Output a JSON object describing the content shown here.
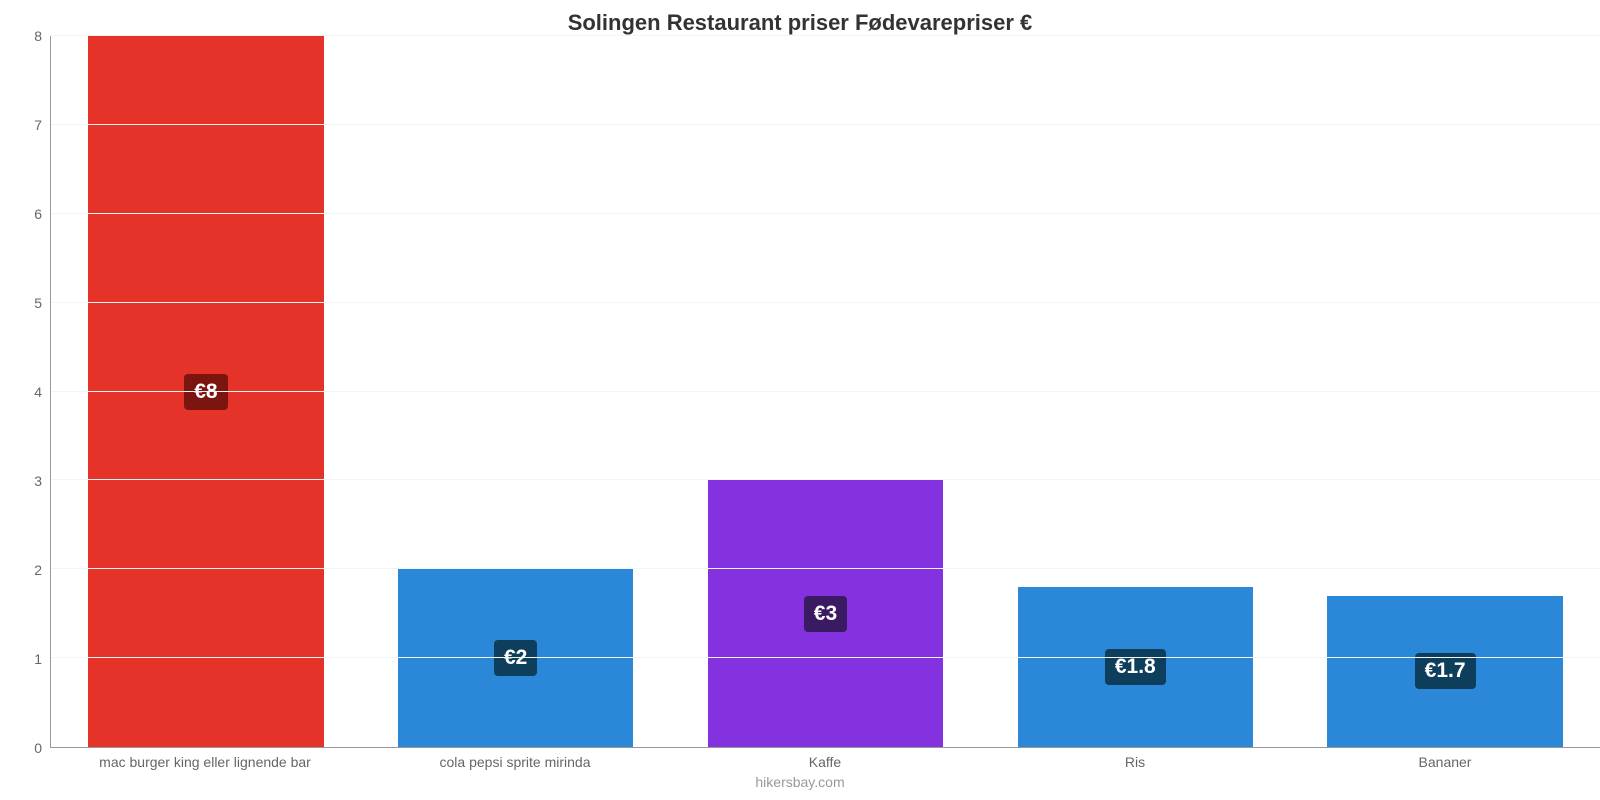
{
  "chart": {
    "type": "bar",
    "title": "Solingen Restaurant priser Fødevarepriser €",
    "title_fontsize": 22,
    "title_color": "#333333",
    "footer": "hikersbay.com",
    "footer_fontsize": 14,
    "footer_color": "#999999",
    "background_color": "#ffffff",
    "grid_color": "#f4f4f4",
    "axis_color": "#999999",
    "tick_color": "#666666",
    "tick_fontsize": 14,
    "xlabel_fontsize": 14,
    "bar_width_pct": 76,
    "ylim": [
      0,
      8
    ],
    "ytick_step": 1,
    "yticks": [
      0,
      1,
      2,
      3,
      4,
      5,
      6,
      7,
      8
    ],
    "categories": [
      "mac burger king eller lignende bar",
      "cola pepsi sprite mirinda",
      "Kaffe",
      "Ris",
      "Bananer"
    ],
    "values": [
      8,
      2,
      3,
      1.8,
      1.7
    ],
    "value_labels": [
      "€8",
      "€2",
      "€3",
      "€1.8",
      "€1.7"
    ],
    "bar_colors": [
      "#e6332a",
      "#2b88d8",
      "#8432e0",
      "#2b88d8",
      "#2b88d8"
    ],
    "label_bg_colors": [
      "#7c1410",
      "#0d3e5c",
      "#3a1a62",
      "#0d3e5c",
      "#0d3e5c"
    ],
    "label_fontsize": 21,
    "label_text_color": "#ffffff"
  }
}
